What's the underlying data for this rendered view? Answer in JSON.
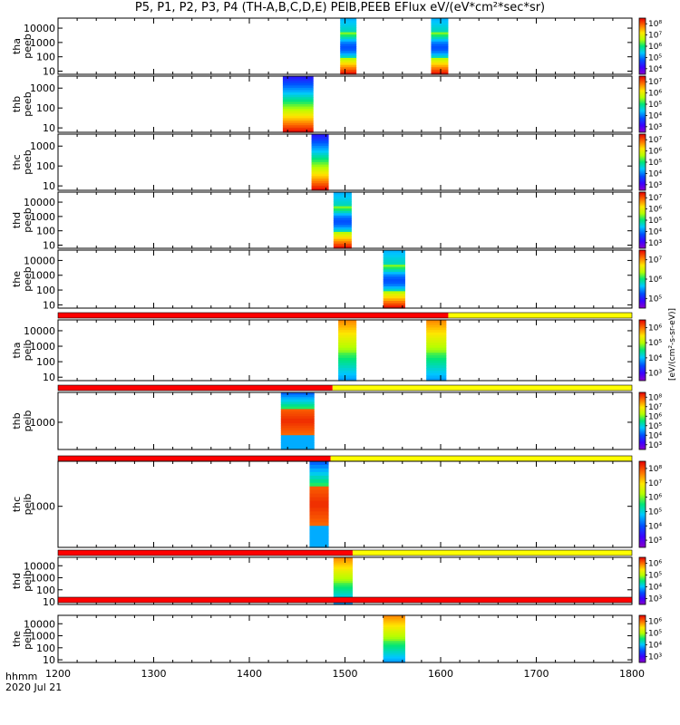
{
  "title": "P5, P1, P2, P3, P4 (TH-A,B,C,D,E) PEIB,PEEB EFlux eV/(eV*cm²*sec*sr)",
  "footer": {
    "line1": "hhmm",
    "line2": "2020 Jul 21"
  },
  "colorbar_label": "[eV/(cm²-s-sr-eV)]",
  "chart_data": {
    "type": "heatmap",
    "title": "P5, P1, P2, P3, P4 (TH-A,B,C,D,E) PEIB,PEEB EFlux eV/(eV*cm²*sec*sr)",
    "x_ticks": [
      "1200",
      "1300",
      "1400",
      "1500",
      "1600",
      "1700",
      "1800"
    ],
    "xlim": [
      1200,
      1800
    ],
    "x_label": "hhmm",
    "date": "2020 Jul 21",
    "panels": [
      {
        "ylabel": [
          "tha",
          "peeb"
        ],
        "yticks": [
          "10",
          "100",
          "1000",
          "10000"
        ],
        "ylog": true,
        "ylim": [
          6,
          50000
        ],
        "blocks": [
          {
            "x0": 1495,
            "x1": 1512,
            "profile": "mixed"
          },
          {
            "x0": 1590,
            "x1": 1608,
            "profile": "mixed"
          }
        ],
        "cb_ticks": [
          "10⁴",
          "10⁵",
          "10⁶",
          "10⁷",
          "10⁸"
        ]
      },
      {
        "ylabel": [
          "thb",
          "peeb"
        ],
        "yticks": [
          "10",
          "100",
          "1000"
        ],
        "ylog": true,
        "ylim": [
          6,
          4000
        ],
        "blocks": [
          {
            "x0": 1435,
            "x1": 1467,
            "profile": "ramp"
          }
        ],
        "cb_ticks": [
          "10³",
          "10⁴",
          "10⁵",
          "10⁶",
          "10⁷"
        ]
      },
      {
        "ylabel": [
          "thc",
          "peeb"
        ],
        "yticks": [
          "10",
          "100",
          "1000"
        ],
        "ylog": true,
        "ylim": [
          6,
          4000
        ],
        "blocks": [
          {
            "x0": 1465,
            "x1": 1483,
            "profile": "ramp"
          }
        ],
        "cb_ticks": [
          "10³",
          "10⁴",
          "10⁵",
          "10⁶",
          "10⁷"
        ]
      },
      {
        "ylabel": [
          "thd",
          "peeb"
        ],
        "yticks": [
          "10",
          "100",
          "1000",
          "10000"
        ],
        "ylog": true,
        "ylim": [
          6,
          50000
        ],
        "blocks": [
          {
            "x0": 1488,
            "x1": 1507,
            "profile": "mixed"
          }
        ],
        "cb_ticks": [
          "10³",
          "10⁴",
          "10⁵",
          "10⁶",
          "10⁷"
        ]
      },
      {
        "ylabel": [
          "the",
          "peeb"
        ],
        "yticks": [
          "10",
          "100",
          "1000",
          "10000"
        ],
        "ylog": true,
        "ylim": [
          6,
          50000
        ],
        "blocks": [
          {
            "x0": 1540,
            "x1": 1563,
            "profile": "mixed"
          }
        ],
        "cb_ticks": [
          "10⁵",
          "10⁶",
          "10⁷"
        ]
      },
      {
        "ylabel": [
          "tha",
          "peib"
        ],
        "yticks": [
          "10",
          "100",
          "1000",
          "10000"
        ],
        "ylog": true,
        "ylim": [
          6,
          50000
        ],
        "status_bar": {
          "red_end": 1608
        },
        "blocks": [
          {
            "x0": 1493,
            "x1": 1512,
            "profile": "ion"
          },
          {
            "x0": 1585,
            "x1": 1606,
            "profile": "ion"
          }
        ],
        "cb_ticks": [
          "10³",
          "10⁴",
          "10⁵",
          "10⁶"
        ]
      },
      {
        "ylabel": [
          "thb",
          "peib"
        ],
        "yticks": [
          "1000"
        ],
        "ylog": true,
        "ylim": [
          150,
          8000
        ],
        "status_bar": {
          "red_end": 1487
        },
        "blocks": [
          {
            "x0": 1433,
            "x1": 1468,
            "profile": "ionbig"
          }
        ],
        "cb_ticks": [
          "10³",
          "10⁴",
          "10⁵",
          "10⁶",
          "10⁷",
          "10⁸"
        ]
      },
      {
        "ylabel": [
          "thc",
          "peib"
        ],
        "yticks": [
          "1000"
        ],
        "ylog": true,
        "ylim": [
          150,
          8000
        ],
        "status_bar": {
          "red_end": 1485
        },
        "blocks": [
          {
            "x0": 1463,
            "x1": 1483,
            "profile": "ionbig"
          }
        ],
        "cb_ticks": [
          "10³",
          "10⁴",
          "10⁵",
          "10⁶",
          "10⁷",
          "10⁸"
        ]
      },
      {
        "ylabel": [
          "thd",
          "peib"
        ],
        "yticks": [
          "10",
          "100",
          "1000",
          "10000"
        ],
        "ylog": true,
        "ylim": [
          6,
          50000
        ],
        "status_bar": {
          "red_end": 1508
        },
        "blocks": [
          {
            "x0": 1488,
            "x1": 1508,
            "profile": "ion"
          }
        ],
        "cb_ticks": [
          "10³",
          "10⁴",
          "10⁵",
          "10⁶"
        ]
      },
      {
        "ylabel": [
          "the",
          "peib"
        ],
        "yticks": [
          "10",
          "100",
          "1000",
          "10000"
        ],
        "ylog": true,
        "ylim": [
          6,
          50000
        ],
        "status_bar": {
          "red_end": 1800
        },
        "blocks": [
          {
            "x0": 1540,
            "x1": 1563,
            "profile": "ion"
          }
        ],
        "cb_ticks": [
          "10³",
          "10⁴",
          "10⁵",
          "10⁶"
        ]
      }
    ],
    "status_colors": {
      "red": "#ff0000",
      "yellow": "#ffff00"
    }
  }
}
